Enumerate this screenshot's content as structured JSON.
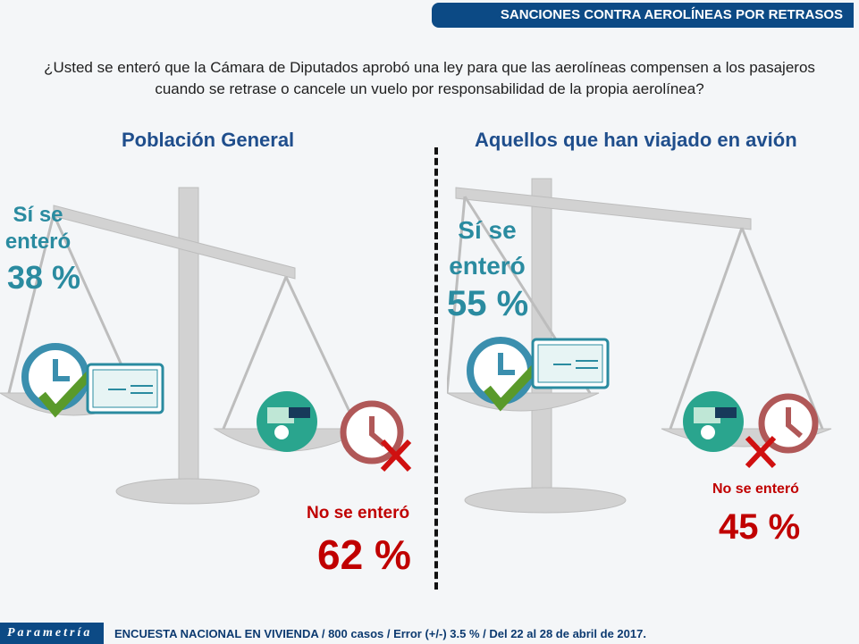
{
  "header": {
    "title": "SANCIONES CONTRA AEROLÍNEAS POR RETRASOS"
  },
  "question": "¿Usted se enteró que la Cámara de Diputados aprobó una ley para que las aerolíneas compensen a los pasajeros cuando se retrase o cancele un vuelo por responsabilidad de la propia aerolínea?",
  "panels": [
    {
      "title": "Población General",
      "yes_label_1": "Sí se",
      "yes_label_2": "enteró",
      "yes_value": "38 %",
      "no_label": "No se enteró",
      "no_value": "62 %"
    },
    {
      "title": "Aquellos que han viajado en avión",
      "yes_label_1": "Sí se",
      "yes_label_2": "enteró",
      "yes_value": "55 %",
      "no_label": "No se enteró",
      "no_value": "45 %"
    }
  ],
  "footer": {
    "logo": "Parametría",
    "text": "ENCUESTA NACIONAL EN VIVIENDA / 800 casos / Error (+/-) 3.5 % / Del 22 al 28 de abril de 2017."
  },
  "colors": {
    "brand": "#0c4a85",
    "yes": "#2a8ba0",
    "no": "#c00000",
    "title": "#1f4e8c"
  }
}
